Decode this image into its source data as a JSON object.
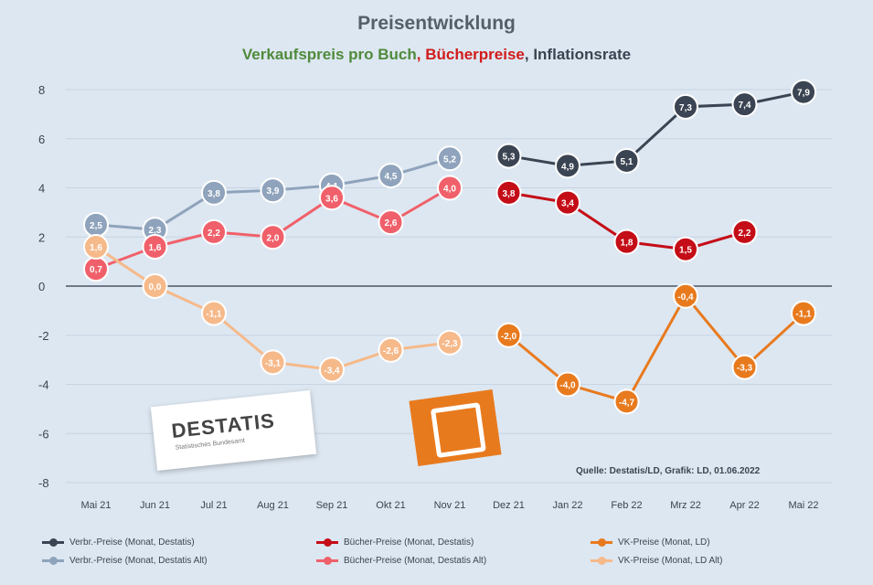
{
  "chart_data": {
    "type": "line",
    "title": "Preisentwicklung",
    "subtitle_parts": {
      "green": "Verkaufspreis pro Buch",
      "red": "Bücherpreise",
      "dark": "Inflationsrate"
    },
    "categories": [
      "Mai 21",
      "Jun 21",
      "Jul 21",
      "Aug 21",
      "Sep 21",
      "Okt 21",
      "Nov 21",
      "Dez 21",
      "Jan 22",
      "Feb 22",
      "Mrz 22",
      "Apr 22",
      "Mai 22"
    ],
    "y_ticks": [
      8,
      6,
      4,
      2,
      0,
      -2,
      -4,
      -6,
      -8
    ],
    "ylim": [
      -8,
      8
    ],
    "grid": true,
    "legend_position": "bottom",
    "series": [
      {
        "name": "Verbr.-Preise (Monat, Destatis)",
        "color": "#3b4452",
        "style": "solid",
        "values": [
          null,
          null,
          null,
          null,
          null,
          null,
          null,
          5.3,
          4.9,
          5.1,
          7.3,
          7.4,
          7.9
        ],
        "labels": [
          "",
          "",
          "",
          "",
          "",
          "",
          "",
          "5,3",
          "4,9",
          "5,1",
          "7,3",
          "7,4",
          "7,9"
        ]
      },
      {
        "name": "Verbr.-Preise (Monat, Destatis Alt)",
        "color": "#8fa3bc",
        "style": "solid",
        "values": [
          2.5,
          2.3,
          3.8,
          3.9,
          4.1,
          4.5,
          5.2,
          null,
          null,
          null,
          null,
          null,
          null
        ],
        "labels": [
          "2,5",
          "2,3",
          "3,8",
          "3,9",
          "4,1",
          "4,5",
          "5,2",
          "",
          "",
          "",
          "",
          "",
          ""
        ]
      },
      {
        "name": "Bücher-Preise (Monat, Destatis)",
        "color": "#c40d17",
        "style": "solid",
        "values": [
          null,
          null,
          null,
          null,
          null,
          null,
          null,
          3.8,
          3.4,
          1.8,
          1.5,
          2.2,
          null
        ],
        "labels": [
          "",
          "",
          "",
          "",
          "",
          "",
          "",
          "3,8",
          "3,4",
          "1,8",
          "1,5",
          "2,2",
          ""
        ]
      },
      {
        "name": "Bücher-Preise (Monat, Destatis Alt)",
        "color": "#f0606a",
        "style": "solid",
        "values": [
          0.7,
          1.6,
          2.2,
          2.0,
          3.6,
          2.6,
          4.0,
          null,
          null,
          null,
          null,
          null,
          null
        ],
        "labels": [
          "0,7",
          "1,6",
          "2,2",
          "2,0",
          "3,6",
          "2,6",
          "4,0",
          "",
          "",
          "",
          "",
          "",
          ""
        ]
      },
      {
        "name": "VK-Preise (Monat, LD)",
        "color": "#e87a1e",
        "style": "solid",
        "values": [
          null,
          null,
          null,
          null,
          null,
          null,
          null,
          -2.0,
          -4.0,
          -4.7,
          -0.4,
          -3.3,
          -1.1
        ],
        "labels": [
          "",
          "",
          "",
          "",
          "",
          "",
          "",
          "-2,0",
          "-4,0",
          "-4,7",
          "-0,4",
          "-3,3",
          "-1,1"
        ]
      },
      {
        "name": "VK-Preise (Monat, LD Alt)",
        "color": "#f6b98a",
        "style": "solid",
        "values": [
          1.6,
          0.0,
          -1.1,
          -3.1,
          -3.4,
          -2.6,
          -2.3,
          null,
          null,
          null,
          null,
          null,
          null
        ],
        "labels": [
          "1,6",
          "0,0",
          "-1,1",
          "-3,1",
          "-3,4",
          "-2,6",
          "-2,3",
          "",
          "",
          "",
          "",
          "",
          ""
        ]
      }
    ]
  },
  "source_note": "Quelle: Destatis/LD, Grafik: LD, 01.06.2022",
  "destatis_logo": {
    "name": "DESTATIS",
    "tagline": "Statistisches Bundesamt"
  }
}
